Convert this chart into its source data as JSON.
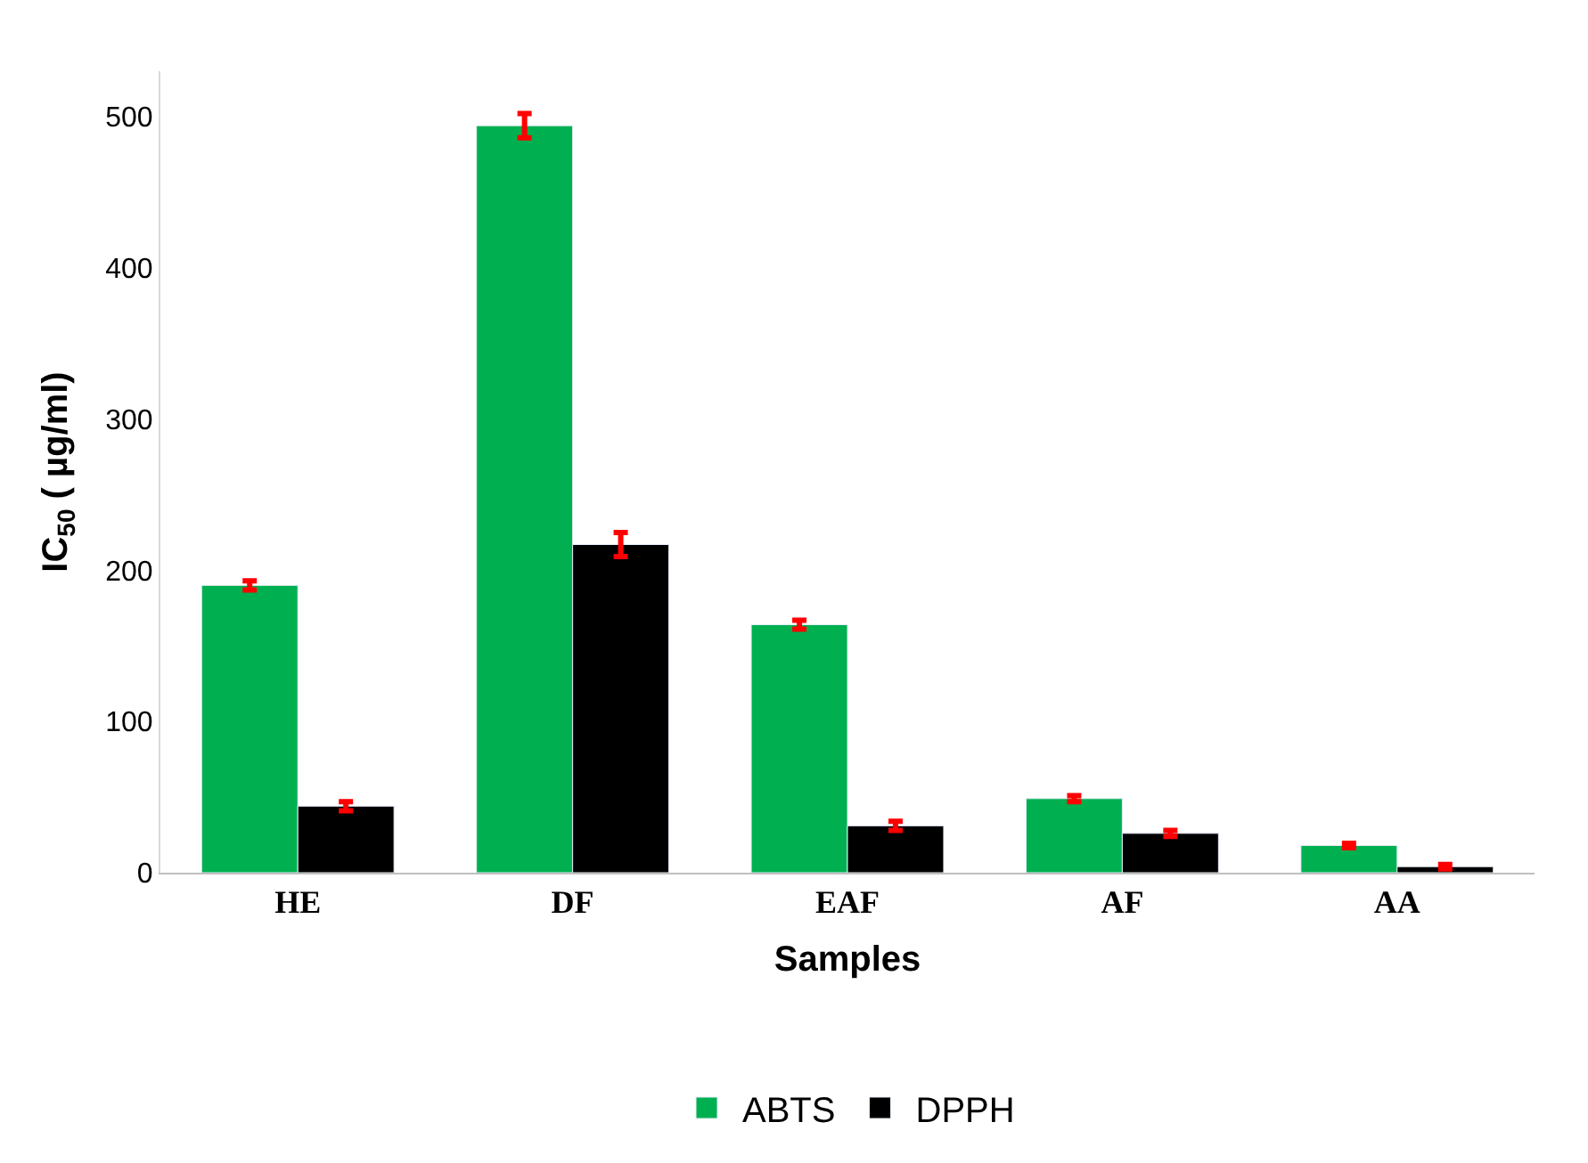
{
  "chart_data": {
    "type": "bar",
    "xlabel": "Samples",
    "ylabel": "IC$_{50}$ ( µg/ml)",
    "categories": [
      "HE",
      "DF",
      "EAF",
      "AF",
      "AA"
    ],
    "series": [
      {
        "name": "ABTS",
        "color": "#00b050",
        "values": [
          190,
          494,
          164,
          49,
          18
        ],
        "errors": [
          3,
          8,
          3,
          2,
          1.5
        ]
      },
      {
        "name": "DPPH",
        "color": "#000000",
        "values": [
          44,
          217,
          31,
          26,
          4
        ],
        "errors": [
          3,
          8,
          3,
          2,
          1.5
        ]
      }
    ],
    "ylim": [
      0,
      530
    ],
    "yticks": [
      0,
      100,
      200,
      300,
      400,
      500
    ],
    "legend": "bottom"
  }
}
